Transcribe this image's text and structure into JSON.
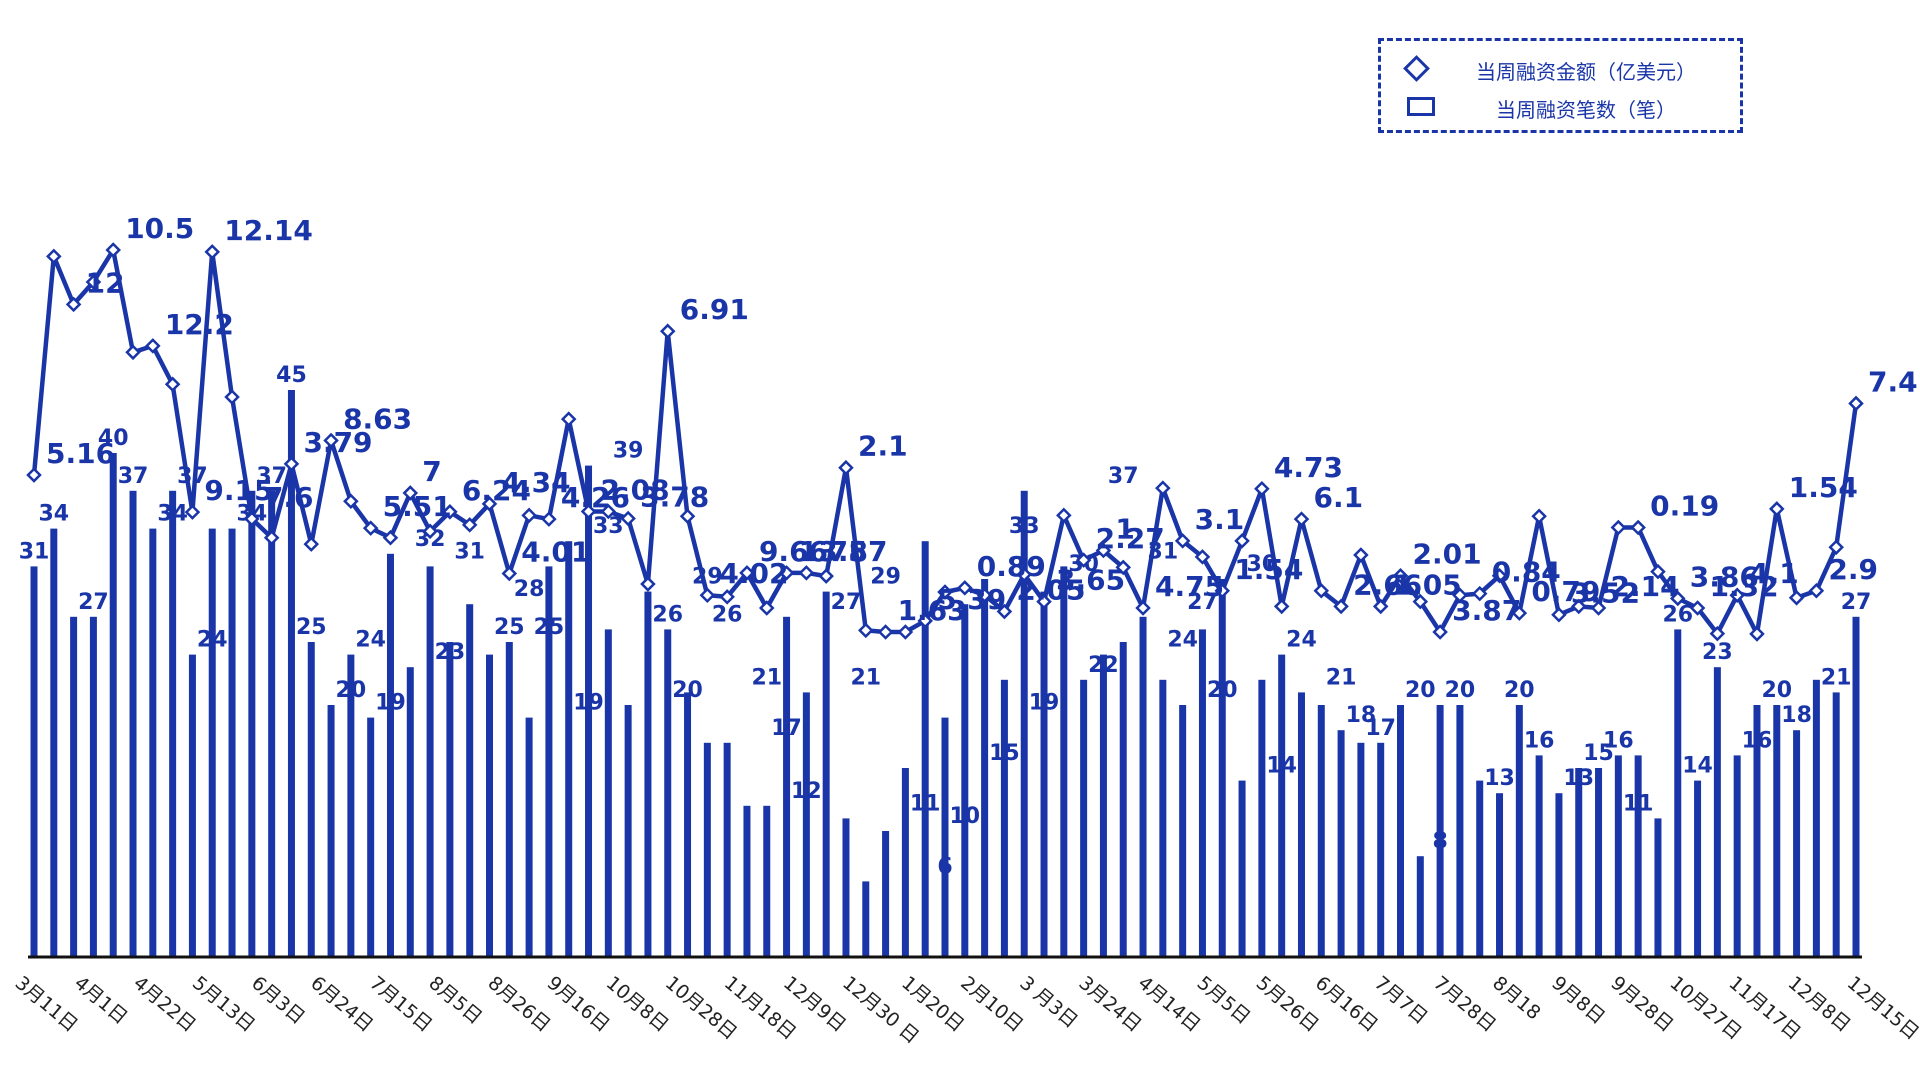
{
  "legend": {
    "amount_label": "当周融资金额（亿美元）",
    "count_label": "当周融资笔数（笔）"
  },
  "colors": {
    "series": "#1a35a8",
    "marker_fill": "#ffffff",
    "axis": "#111111",
    "tick_text": "#222222"
  },
  "chart_data": {
    "type": "bar+line",
    "x_tick_labels": [
      "3月11日",
      "4月1日",
      "4月22日",
      "5月13日",
      "6月3日",
      "6月24日",
      "7月15日",
      "8月5日",
      "8月26日",
      "9月16日",
      "10月8日",
      "10月28日",
      "11月18日",
      "12月9日",
      "12月30 日",
      "1月20日",
      "2月10日",
      "3 月3日",
      "3月24日",
      "4月14日",
      "5月5日",
      "5月26日",
      "6月16日",
      "7月7日",
      "7月28日",
      "8月18",
      "9月8日",
      "9月28日",
      "10月27日",
      "11月17日",
      "12月8日",
      "12月15日"
    ],
    "series": [
      {
        "name": "当周融资笔数（笔）",
        "type": "bar",
        "values": [
          31,
          34,
          27,
          27,
          40,
          37,
          34,
          37,
          24,
          34,
          34,
          37,
          37,
          45,
          25,
          20,
          24,
          19,
          32,
          23,
          31,
          25,
          28,
          24,
          25,
          19,
          31,
          33,
          39,
          26,
          20,
          29,
          26,
          21,
          17,
          17,
          12,
          12,
          27,
          21,
          29,
          11,
          6,
          10,
          15,
          33,
          19,
          28,
          30,
          22,
          37,
          29,
          31,
          22,
          24,
          25,
          27,
          22,
          20,
          26,
          30,
          14,
          22,
          24,
          21,
          20,
          18,
          17,
          17,
          20,
          8,
          20,
          20,
          14,
          13,
          20,
          16,
          13,
          15,
          15,
          16,
          16,
          11,
          26,
          14,
          23,
          16,
          20,
          20,
          18,
          22,
          21,
          27
        ]
      },
      {
        "name": "当周融资金额（亿美元）",
        "type": "line",
        "values": [
          5.16,
          12,
          10.5,
          11.2,
          12.2,
          9.0,
          9.2,
          8.0,
          4.0,
          12.14,
          7.6,
          3.79,
          3.2,
          5.51,
          3.0,
          6.24,
          4.34,
          3.5,
          3.2,
          4.6,
          3.4,
          4.01,
          3.6,
          4.26,
          2.08,
          3.9,
          3.78,
          6.91,
          4.02,
          4.02,
          3.8,
          1.75,
          9.66,
          3.87,
          1.4,
          1.35,
          2.1,
          1.0,
          2.1,
          2.1,
          2.0,
          5.39,
          0.3,
          0.25,
          0.25,
          0.6,
          1.5,
          1.63,
          1.4,
          0.89,
          2.05,
          1.2,
          3.9,
          2.5,
          2.8,
          2.27,
          1.0,
          4.75,
          3.1,
          2.6,
          1.54,
          3.1,
          4.73,
          1.05,
          3.78,
          1.54,
          1.05,
          2.66,
          1.05,
          2.01,
          1.2,
          0.25,
          1.4,
          1.45,
          2.01,
          0.84,
          3.87,
          0.79,
          1.05,
          1.0,
          3.52,
          3.52,
          2.14,
          1.3,
          1.0,
          0.2,
          1.4,
          0.19,
          4.1,
          1.32,
          1.54,
          2.9,
          7.4
        ]
      }
    ],
    "bar_labels": [
      "31",
      "34",
      "27",
      "40",
      "37",
      "34",
      "37",
      "24",
      "34",
      "37",
      "45",
      "25",
      "20",
      "24",
      "19",
      "32",
      "23",
      "31",
      "25",
      "28",
      "25",
      "19",
      "33",
      "39",
      "26",
      "20",
      "29",
      "26",
      "21",
      "17",
      "12",
      "27",
      "21",
      "29",
      "11",
      "6",
      "10",
      "15",
      "33",
      "19",
      "30",
      "22",
      "37",
      "31",
      "24",
      "27",
      "20",
      "30",
      "14",
      "24",
      "21",
      "18",
      "17",
      "20",
      "8",
      "20",
      "13",
      "20",
      "16",
      "13",
      "15",
      "16",
      "11",
      "26",
      "14",
      "23",
      "16",
      "20",
      "18",
      "21",
      "27"
    ],
    "line_labels": [
      "5.16",
      "12",
      "10.5",
      "12.2",
      "9.15",
      "12.14",
      "7.6",
      "3.79",
      "8.63",
      "5.51",
      "7",
      "6.24",
      "4.34",
      "4.01",
      "4.26",
      "2.08",
      "3.78",
      "6.91",
      "4.02",
      "9.66",
      "1.75",
      "3.87",
      "2.1",
      "1.63",
      "5.39",
      "0.89",
      "2.05",
      "3.65",
      "2.27",
      "1",
      "4.75",
      "3.1",
      "1.54",
      "4.73",
      "6.1",
      "2.66",
      "1.05",
      "2.01",
      "3.87",
      "0.84",
      "0.79",
      "3.52",
      "2.14",
      "0.19",
      "3.86",
      "1.32",
      "4.1",
      "1.54",
      "2.9",
      "7.4"
    ],
    "grid": false
  }
}
